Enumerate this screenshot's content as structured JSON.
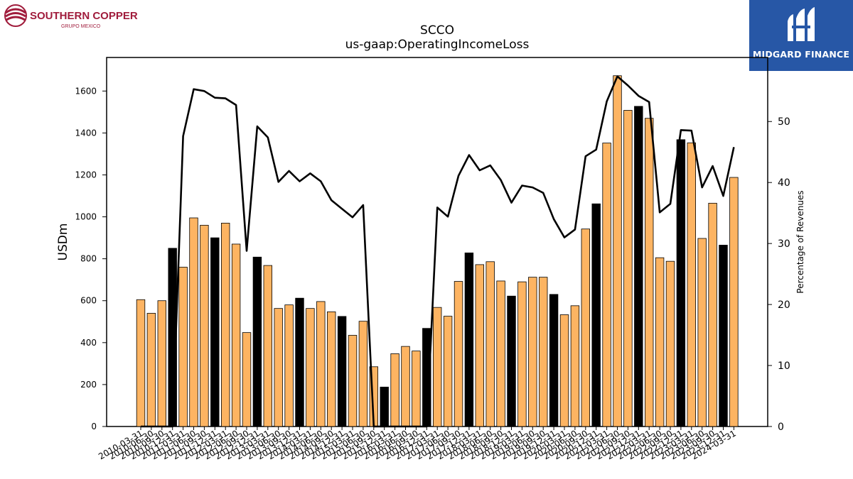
{
  "branding": {
    "left_logo_name": "SOUTHERN COPPER",
    "left_logo_sub": "GRUPO MEXICO",
    "left_logo_color": "#a01c3c",
    "right_logo_name": "MIDGARD FINANCE",
    "right_logo_bg": "#2757a6"
  },
  "chart_data": {
    "type": "bar",
    "title": "SCCO",
    "subtitle": "us-gaap:OperatingIncomeLoss",
    "ylabel": "USDm",
    "y2label": "Percentage of Revenues",
    "ylim": [
      0,
      1760
    ],
    "y2lim": [
      0,
      60.5
    ],
    "yticks": [
      0,
      200,
      400,
      600,
      800,
      1000,
      1200,
      1400,
      1600
    ],
    "y2ticks": [
      0,
      10,
      20,
      30,
      40,
      50
    ],
    "grid": false,
    "colors": {
      "bar": "#fdb462",
      "bar_highlight": "#000000",
      "line": "#000000",
      "edge": "#000000"
    },
    "categories": [
      "2010-03-31",
      "2010-06-30",
      "2010-09-30",
      "2010-12-31",
      "2011-03-31",
      "2011-06-30",
      "2011-09-30",
      "2011-12-31",
      "2012-03-31",
      "2012-06-30",
      "2012-09-30",
      "2012-12-31",
      "2013-03-31",
      "2013-06-30",
      "2013-09-30",
      "2013-12-31",
      "2014-03-31",
      "2014-06-30",
      "2014-09-30",
      "2014-12-31",
      "2015-03-31",
      "2015-06-30",
      "2015-09-30",
      "2015-12-31",
      "2016-03-31",
      "2016-06-30",
      "2016-09-30",
      "2016-12-31",
      "2017-03-31",
      "2017-06-30",
      "2017-09-30",
      "2017-12-31",
      "2018-03-31",
      "2018-06-30",
      "2018-09-30",
      "2018-12-31",
      "2019-03-31",
      "2019-06-30",
      "2019-09-30",
      "2019-12-31",
      "2020-03-31",
      "2020-06-30",
      "2020-09-30",
      "2020-12-31",
      "2021-03-31",
      "2021-06-30",
      "2021-09-30",
      "2021-12-31",
      "2022-03-31",
      "2022-06-30",
      "2022-09-30",
      "2022-12-31",
      "2023-03-31",
      "2023-06-30",
      "2023-09-30",
      "2023-12-31",
      "2024-03-31"
    ],
    "series": [
      {
        "values": [
          605,
          540,
          600,
          850,
          760,
          995,
          960,
          900,
          970,
          870,
          448,
          808,
          768,
          563,
          580,
          612,
          563,
          596,
          547,
          525,
          435,
          502,
          285,
          188,
          347,
          382,
          360,
          468,
          568,
          526,
          692,
          828,
          772,
          786,
          694,
          622,
          690,
          712,
          712,
          630,
          533,
          576,
          942,
          1062,
          1352,
          1673,
          1508,
          1527,
          1470,
          805,
          788,
          1368,
          1353,
          897,
          1065,
          865,
          1188
        ],
        "highlighted": [
          false,
          false,
          false,
          true,
          false,
          false,
          false,
          true,
          false,
          false,
          false,
          true,
          false,
          false,
          false,
          true,
          false,
          false,
          false,
          true,
          false,
          false,
          false,
          true,
          false,
          false,
          false,
          true,
          false,
          false,
          false,
          true,
          false,
          false,
          false,
          true,
          false,
          false,
          false,
          true,
          false,
          false,
          false,
          true,
          false,
          false,
          false,
          true,
          false,
          false,
          false,
          true,
          false,
          false,
          false,
          true,
          false
        ]
      },
      {
        "name": "Percentage of Revenues",
        "axis": "y2",
        "values": [
          0,
          0,
          0,
          0,
          47.6,
          55.3,
          55.0,
          53.9,
          53.8,
          52.7,
          28.8,
          49.2,
          47.4,
          40.1,
          41.9,
          40.2,
          41.5,
          40.2,
          37.1,
          35.7,
          34.3,
          36.3,
          0,
          0,
          0,
          0,
          0,
          0,
          35.9,
          34.4,
          41.1,
          44.5,
          42.0,
          42.8,
          40.4,
          36.7,
          39.5,
          39.2,
          38.3,
          34.0,
          31.0,
          32.3,
          44.3,
          45.4,
          53.3,
          57.4,
          55.9,
          54.2,
          53.2,
          35.1,
          36.5,
          48.6,
          48.5,
          39.2,
          42.7,
          37.8,
          45.8
        ]
      }
    ]
  }
}
